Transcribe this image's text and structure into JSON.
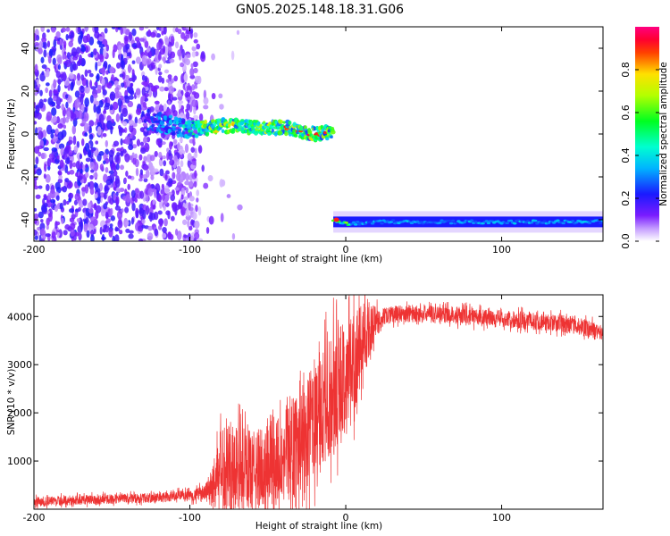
{
  "figure_title": "GN05.2025.148.18.31.G06",
  "chart_data": [
    {
      "type": "heatmap",
      "title": "",
      "xlabel": "Height of straight line (km)",
      "ylabel": "Frequency (Hz)",
      "xlim": [
        -200,
        165
      ],
      "ylim": [
        -50,
        50
      ],
      "xticks": [
        -200,
        -100,
        0,
        100
      ],
      "yticks": [
        -40,
        -20,
        0,
        20,
        40
      ],
      "colorbar": {
        "label": "Normalized spectral amplitude",
        "range": [
          0,
          1
        ],
        "ticks": [
          0,
          0.2,
          0.4,
          0.6,
          0.8
        ],
        "tick_labels": [
          "0.0",
          "0.2",
          "0.4",
          "0.6",
          "0.8"
        ],
        "colormap": "rainbow (white-purple-blue-cyan-green-yellow-red-magenta)"
      },
      "grid": false,
      "features": [
        {
          "description": "diffuse scattered noise",
          "x_range": [
            -200,
            -95
          ],
          "y_range": [
            -50,
            50
          ],
          "amplitude": 0.15
        },
        {
          "description": "central spectral line",
          "x_range": [
            -130,
            -8
          ],
          "frequency_at_x": [
            [
              -130,
              7
            ],
            [
              -100,
              2
            ],
            [
              -80,
              4
            ],
            [
              -60,
              3
            ],
            [
              -40,
              3
            ],
            [
              -20,
              0
            ],
            [
              -8,
              1
            ]
          ],
          "peak_amplitude": 0.9
        },
        {
          "description": "shifted spectral line",
          "x_range": [
            -8,
            165
          ],
          "frequency_at_x": [
            [
              -8,
              -40
            ],
            [
              0,
              -42
            ],
            [
              20,
              -41
            ],
            [
              100,
              -41
            ],
            [
              165,
              -41
            ]
          ],
          "peak_amplitude": 0.3
        }
      ]
    },
    {
      "type": "line",
      "title": "",
      "xlabel": "Height of straight line (km)",
      "ylabel": "SNR (10 * v/v)",
      "xlim": [
        -200,
        165
      ],
      "ylim": [
        0,
        4450
      ],
      "xticks": [
        -200,
        -100,
        0,
        100
      ],
      "yticks": [
        1000,
        2000,
        3000,
        4000
      ],
      "grid": false,
      "series": [
        {
          "color": "#ee3333",
          "x": [
            -200,
            -180,
            -160,
            -140,
            -120,
            -110,
            -100,
            -90,
            -85,
            -80,
            -75,
            -70,
            -60,
            -50,
            -40,
            -30,
            -20,
            -10,
            0,
            5,
            10,
            15,
            20,
            25,
            30,
            40,
            50,
            60,
            80,
            100,
            120,
            140,
            150,
            160,
            165
          ],
          "values": [
            150,
            180,
            200,
            220,
            240,
            260,
            280,
            350,
            500,
            800,
            1000,
            900,
            800,
            900,
            1100,
            1400,
            1800,
            2300,
            2700,
            3100,
            3400,
            3700,
            3900,
            4000,
            4050,
            4050,
            4050,
            4050,
            4000,
            3950,
            3900,
            3850,
            3800,
            3700,
            3650
          ],
          "noise_amplitude": [
            100,
            100,
            100,
            100,
            100,
            110,
            120,
            150,
            500,
            900,
            1000,
            900,
            800,
            900,
            1000,
            1100,
            1200,
            1300,
            1200,
            1100,
            900,
            600,
            300,
            180,
            180,
            180,
            180,
            180,
            180,
            180,
            180,
            180,
            180,
            180,
            180
          ]
        }
      ]
    }
  ]
}
